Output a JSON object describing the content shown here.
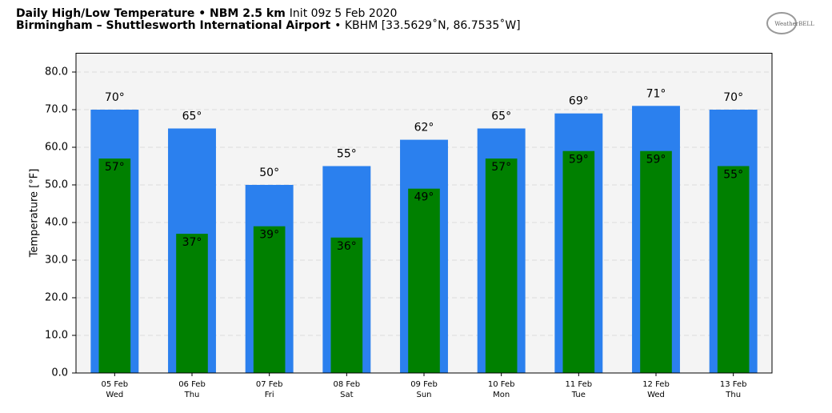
{
  "chart_data": {
    "type": "bar",
    "title": "Daily High/Low Temperature • NBM 2.5 km",
    "init": "Init 09z 5 Feb 2020",
    "location": "Birmingham – Shuttlesworth International Airport",
    "station": "• KBHM [33.5629˚N, 86.7535˚W]",
    "logo": "WeatherBELL",
    "ylabel": "Temperature [°F]",
    "categories": [
      "05 Feb",
      "06 Feb",
      "07 Feb",
      "08 Feb",
      "09 Feb",
      "10 Feb",
      "11 Feb",
      "12 Feb",
      "13 Feb"
    ],
    "weekdays": [
      "Wed",
      "Thu",
      "Fri",
      "Sat",
      "Sun",
      "Mon",
      "Tue",
      "Wed",
      "Thu"
    ],
    "series": [
      {
        "name": "High",
        "color": "#2b80ee",
        "values": [
          70,
          65,
          50,
          55,
          62,
          65,
          69,
          71,
          70
        ],
        "value_labels": [
          "70°",
          "65°",
          "50°",
          "55°",
          "62°",
          "65°",
          "69°",
          "71°",
          "70°"
        ]
      },
      {
        "name": "Low",
        "color": "#008000",
        "values": [
          57,
          37,
          39,
          36,
          49,
          57,
          59,
          59,
          55
        ],
        "value_labels": [
          "57°",
          "37°",
          "39°",
          "36°",
          "49°",
          "57°",
          "59°",
          "59°",
          "55°"
        ]
      }
    ],
    "ylim": [
      0,
      85
    ],
    "yticks": [
      {
        "value": 0,
        "label": "0.0"
      },
      {
        "value": 10,
        "label": "10.0"
      },
      {
        "value": 20,
        "label": "20.0"
      },
      {
        "value": 30,
        "label": "30.0"
      },
      {
        "value": 40,
        "label": "40.0"
      },
      {
        "value": 50,
        "label": "50.0"
      },
      {
        "value": 60,
        "label": "60.0"
      },
      {
        "value": 70,
        "label": "70.0"
      },
      {
        "value": 80,
        "label": "80.0"
      }
    ],
    "grid": true
  }
}
